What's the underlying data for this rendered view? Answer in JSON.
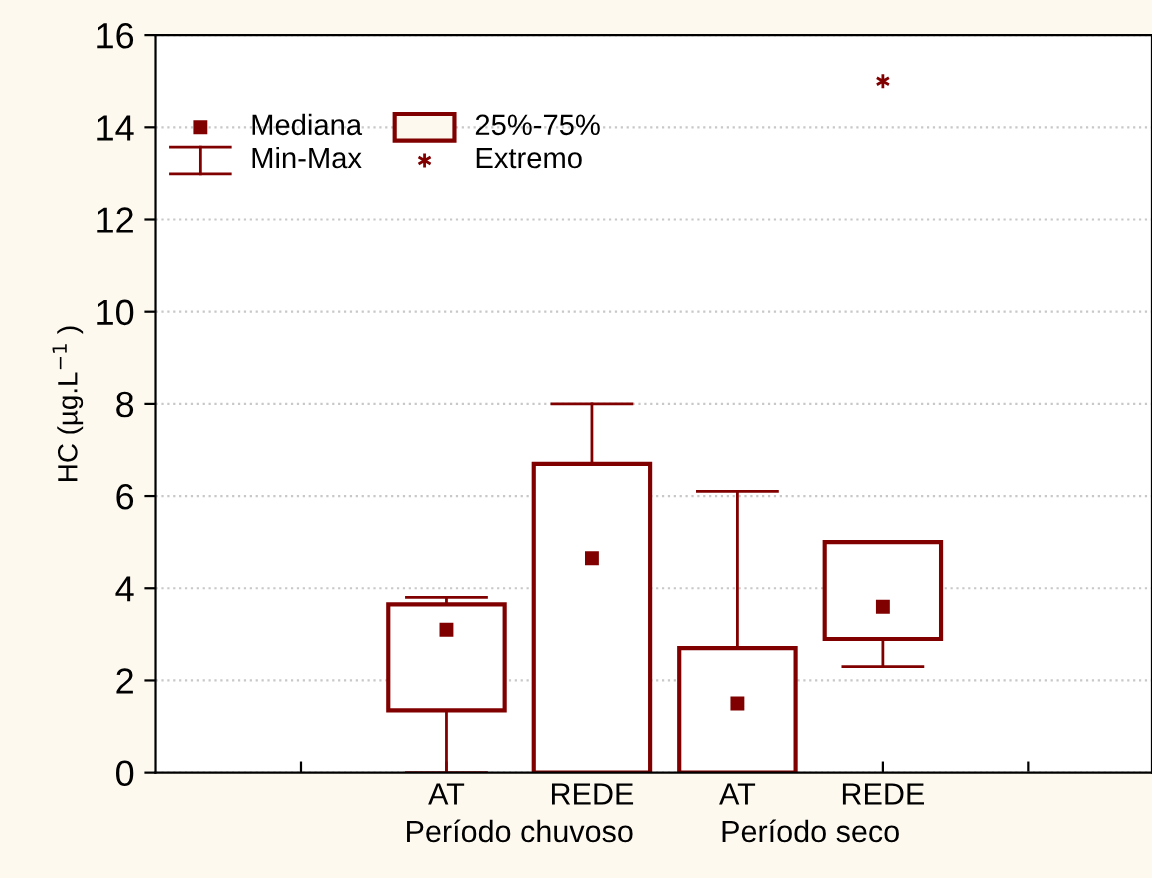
{
  "chart_data": {
    "type": "box",
    "ylabel": "HC (µg.L$^{−1}$ )",
    "categories": [
      null,
      "AT",
      "REDE",
      "AT",
      "REDE",
      null
    ],
    "boxes": [
      null,
      {
        "low": 0,
        "q1": 1.35,
        "median": 3.1,
        "q3": 3.65,
        "high": 3.8
      },
      {
        "low": 0,
        "q1": 0,
        "median": 4.65,
        "q3": 6.7,
        "high": 8.0
      },
      {
        "low": 0,
        "q1": 0,
        "median": 1.5,
        "q3": 2.7,
        "high": 6.1
      },
      {
        "low": 2.3,
        "q1": 2.9,
        "median": 3.6,
        "q3": 5.0,
        "high": 5.0,
        "outliers": [
          15.0
        ]
      },
      null
    ],
    "color": "#800000",
    "ylim": [
      0,
      16
    ],
    "yticks": [
      0,
      2,
      4,
      6,
      8,
      10,
      12,
      14,
      16
    ],
    "grid": "y",
    "annotations": [
      "Mediana",
      "25%-75%",
      "Min-Max",
      "Extremo",
      "Período chuvoso",
      "Período seco"
    ]
  }
}
